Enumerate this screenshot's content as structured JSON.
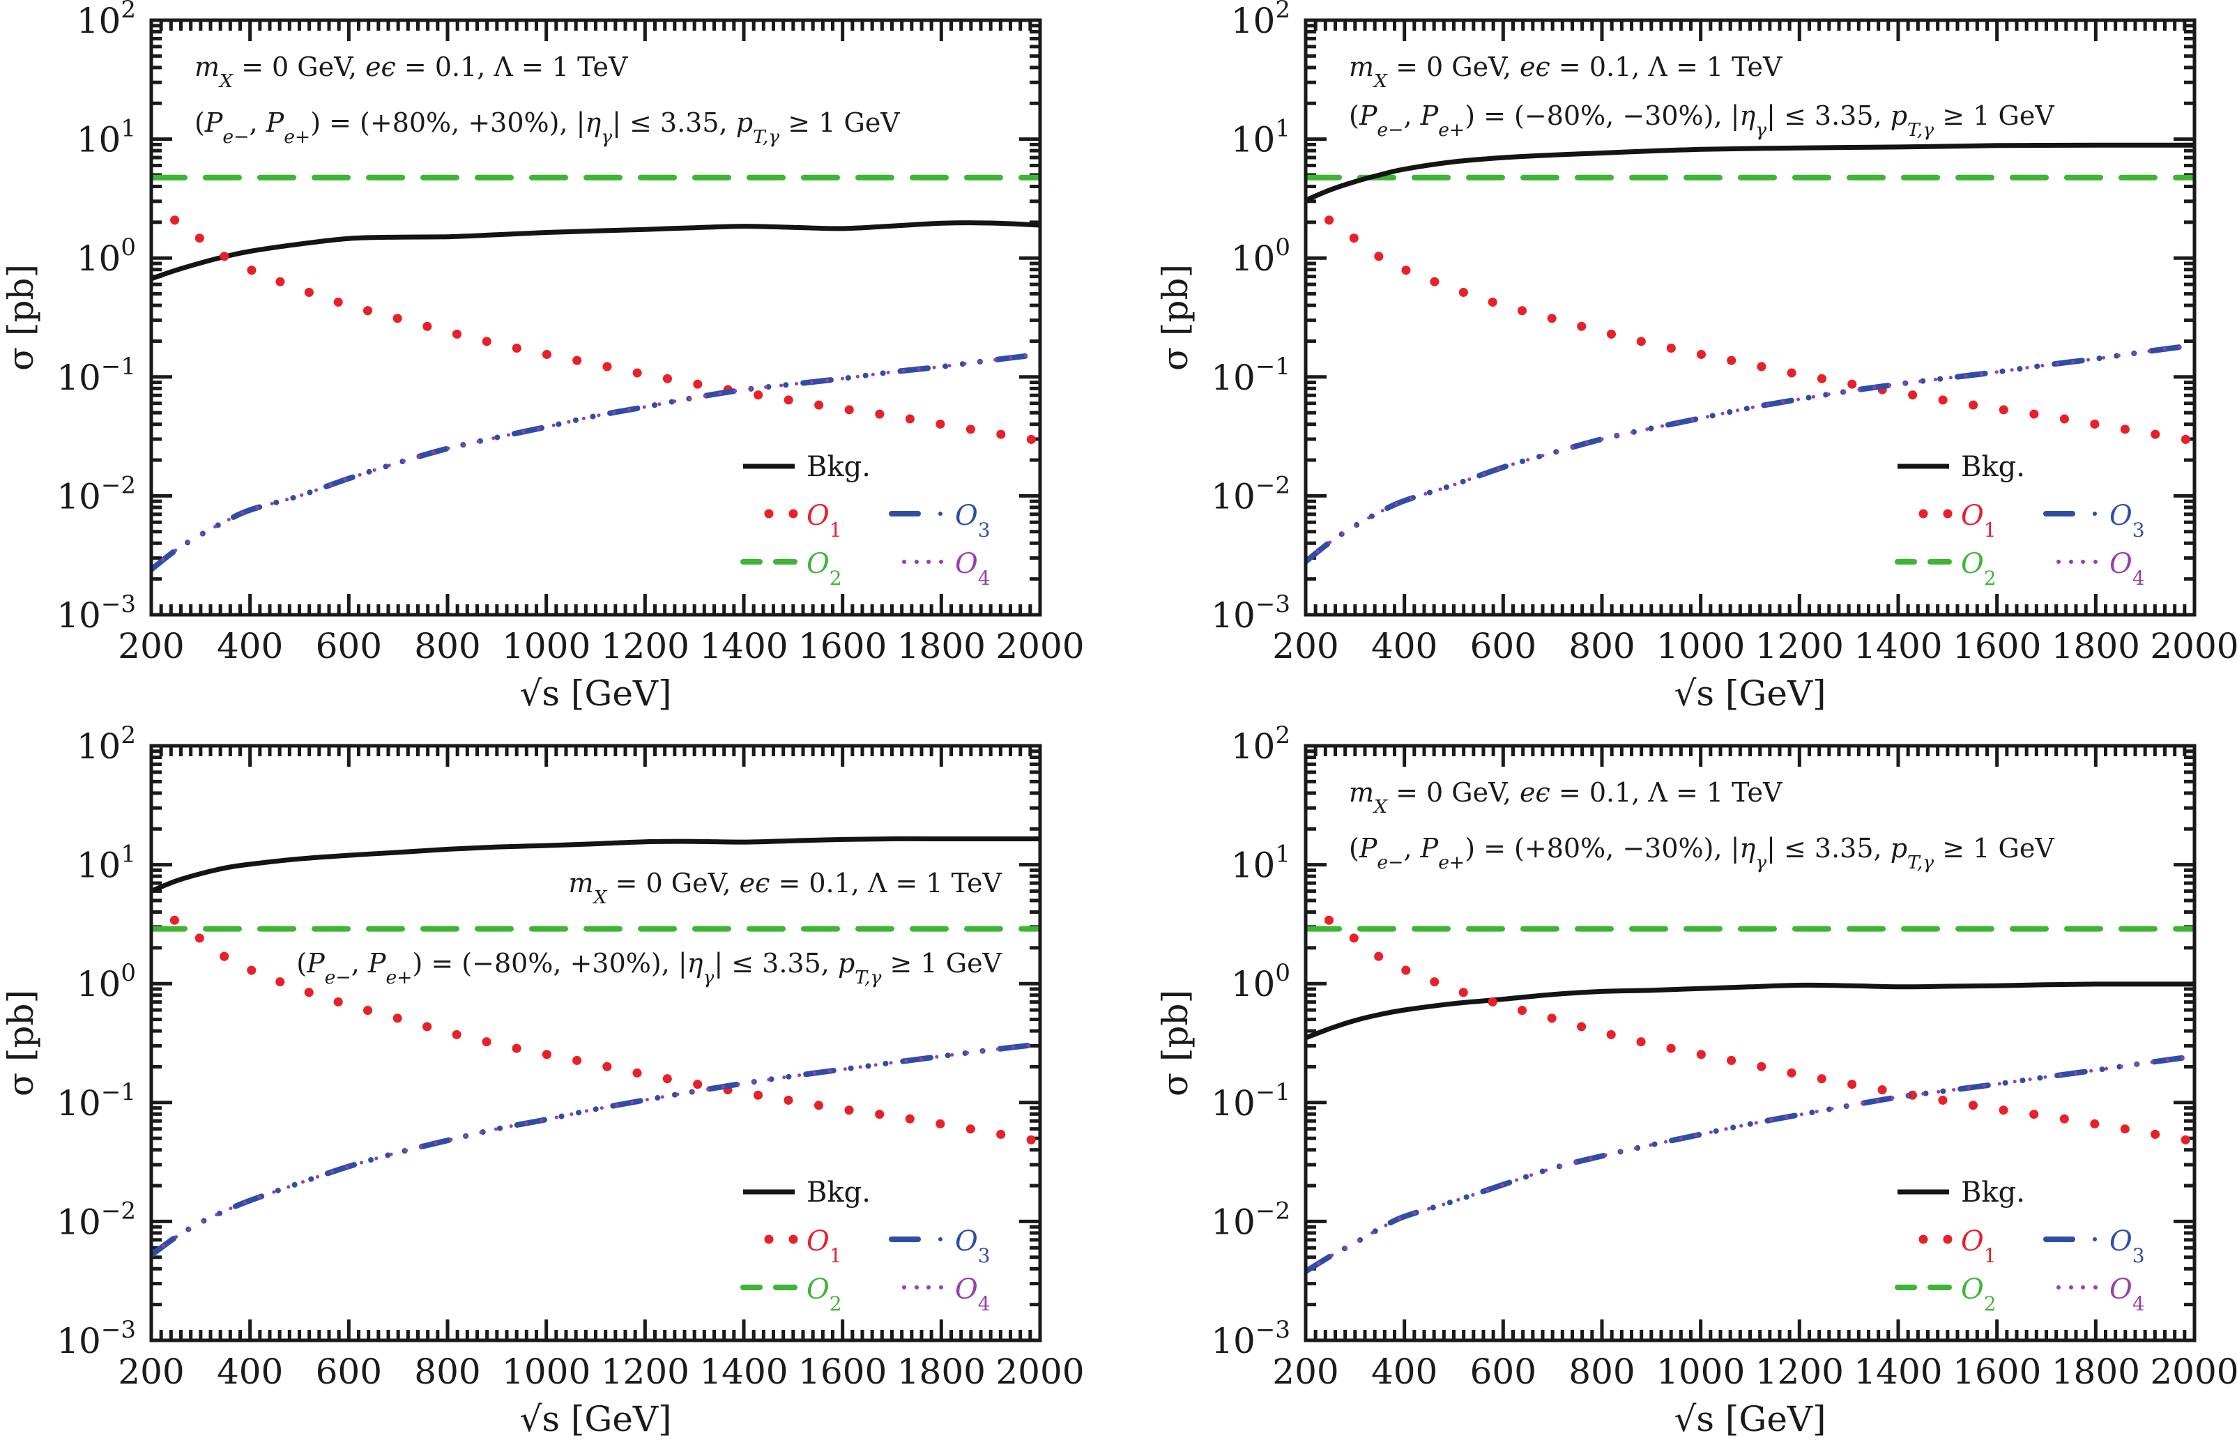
{
  "figure": {
    "description": "Four-panel cross-section plot vs center-of-mass energy for different beam polarizations",
    "panel_order": [
      "top-left",
      "top-right",
      "bottom-left",
      "bottom-right"
    ]
  },
  "colors": {
    "bkg": "#141414",
    "o1": "#e8202a",
    "o2": "#3db535",
    "o3": "#2e4ea6",
    "o4": "#9a3db0",
    "axis": "#1a1a1a"
  },
  "chart_data": [
    {
      "type": "line",
      "position": "top-left",
      "title": "",
      "xlabel": "√s [GeV]",
      "ylabel": "σ [pb]",
      "xlim": [
        200,
        2000
      ],
      "ylim": [
        0.001,
        100
      ],
      "yscale": "log",
      "grid": false,
      "xticks": [
        200,
        400,
        600,
        800,
        1000,
        1200,
        1400,
        1600,
        1800,
        2000
      ],
      "xtick_labels": [
        "200",
        "400",
        "600",
        "800",
        "1000",
        "1200",
        "1400",
        "1600",
        "1800",
        "2000"
      ],
      "yticks": [
        {
          "base": "10",
          "exp": "2"
        },
        {
          "base": "10",
          "exp": "1"
        },
        {
          "base": "10",
          "exp": "0"
        },
        {
          "base": "10",
          "exp": "−1"
        },
        {
          "base": "10",
          "exp": "−2"
        },
        {
          "base": "10",
          "exp": "−3"
        }
      ],
      "annotations": {
        "align": "left",
        "line1": "mX = 0 GeV, eϵ = 0.1, Λ = 1 TeV",
        "line2": "(Pe−, Pe+) = (+80%, +30%),  |ηγ| ≤ 3.35,  pT,γ ≥ 1 GeV"
      },
      "legend": {
        "placement": "lower-right",
        "entries": [
          "Bkg.",
          "O1",
          "O3",
          "O2",
          "O4"
        ]
      },
      "x": [
        200,
        250,
        300,
        350,
        400,
        500,
        600,
        700,
        800,
        900,
        1000,
        1100,
        1200,
        1300,
        1400,
        1500,
        1600,
        1700,
        1800,
        1900,
        2000
      ],
      "series": [
        {
          "name": "Bkg.",
          "key": "bkg",
          "style": "solid",
          "values": [
            0.67,
            0.79,
            0.91,
            1.03,
            1.14,
            1.31,
            1.46,
            1.5,
            1.51,
            1.57,
            1.64,
            1.69,
            1.74,
            1.8,
            1.85,
            1.81,
            1.77,
            1.86,
            1.96,
            1.97,
            1.89
          ]
        },
        {
          "name": "O1",
          "key": "o1",
          "style": "dotted",
          "values": [
            2.8,
            2.05,
            1.45,
            1.02,
            0.8,
            0.55,
            0.4,
            0.31,
            0.24,
            0.19,
            0.155,
            0.128,
            0.105,
            0.088,
            0.074,
            0.063,
            0.054,
            0.047,
            0.04,
            0.034,
            0.029
          ]
        },
        {
          "name": "O2",
          "key": "o2",
          "style": "dashed",
          "values": [
            4.75,
            4.75,
            4.75,
            4.75,
            4.75,
            4.75,
            4.75,
            4.75,
            4.75,
            4.75,
            4.75,
            4.75,
            4.75,
            4.75,
            4.75,
            4.75,
            4.75,
            4.75,
            4.75,
            4.75,
            4.75
          ]
        },
        {
          "name": "O3",
          "key": "o3",
          "style": "dashdot",
          "values": [
            0.0024,
            0.0035,
            0.0047,
            0.0061,
            0.0076,
            0.01,
            0.014,
            0.019,
            0.025,
            0.031,
            0.038,
            0.047,
            0.056,
            0.067,
            0.078,
            0.087,
            0.097,
            0.11,
            0.122,
            0.138,
            0.155
          ]
        },
        {
          "name": "O4",
          "key": "o4",
          "style": "densedot",
          "values": [
            0.0024,
            0.0035,
            0.0047,
            0.0061,
            0.0076,
            0.01,
            0.014,
            0.019,
            0.025,
            0.031,
            0.038,
            0.047,
            0.056,
            0.067,
            0.078,
            0.087,
            0.097,
            0.11,
            0.122,
            0.138,
            0.155
          ]
        }
      ]
    },
    {
      "type": "line",
      "position": "top-right",
      "title": "",
      "xlabel": "√s [GeV]",
      "ylabel": "σ [pb]",
      "xlim": [
        200,
        2000
      ],
      "ylim": [
        0.001,
        100
      ],
      "yscale": "log",
      "grid": false,
      "xticks": [
        200,
        400,
        600,
        800,
        1000,
        1200,
        1400,
        1600,
        1800,
        2000
      ],
      "xtick_labels": [
        "200",
        "400",
        "600",
        "800",
        "1000",
        "1200",
        "1400",
        "1600",
        "1800",
        "2000"
      ],
      "yticks": [
        {
          "base": "10",
          "exp": "2"
        },
        {
          "base": "10",
          "exp": "1"
        },
        {
          "base": "10",
          "exp": "0"
        },
        {
          "base": "10",
          "exp": "−1"
        },
        {
          "base": "10",
          "exp": "−2"
        },
        {
          "base": "10",
          "exp": "−3"
        }
      ],
      "annotations": {
        "align": "left",
        "line1": "mX = 0 GeV, eϵ = 0.1, Λ = 1 TeV",
        "line2": "(Pe−, Pe+) = (−80%, −30%),  |ηγ| ≤ 3.35,  pT,γ ≥ 1 GeV"
      },
      "legend": {
        "placement": "lower-right",
        "entries": [
          "Bkg.",
          "O1",
          "O3",
          "O2",
          "O4"
        ]
      },
      "x": [
        200,
        250,
        300,
        350,
        400,
        500,
        600,
        700,
        800,
        900,
        1000,
        1100,
        1200,
        1300,
        1400,
        1500,
        1600,
        1700,
        1800,
        1900,
        2000
      ],
      "series": [
        {
          "name": "Bkg.",
          "key": "bkg",
          "style": "solid",
          "values": [
            3.06,
            3.75,
            4.39,
            5.0,
            5.59,
            6.45,
            6.99,
            7.35,
            7.64,
            7.95,
            8.2,
            8.33,
            8.44,
            8.52,
            8.59,
            8.7,
            8.83,
            8.87,
            8.9,
            8.9,
            8.9
          ]
        },
        {
          "name": "O1",
          "key": "o1",
          "style": "dotted",
          "values": [
            2.8,
            2.05,
            1.45,
            1.02,
            0.8,
            0.55,
            0.4,
            0.31,
            0.24,
            0.19,
            0.155,
            0.128,
            0.105,
            0.088,
            0.074,
            0.063,
            0.054,
            0.047,
            0.04,
            0.034,
            0.029
          ]
        },
        {
          "name": "O2",
          "key": "o2",
          "style": "dashed",
          "values": [
            4.75,
            4.75,
            4.75,
            4.75,
            4.75,
            4.75,
            4.75,
            4.75,
            4.75,
            4.75,
            4.75,
            4.75,
            4.75,
            4.75,
            4.75,
            4.75,
            4.75,
            4.75,
            4.75,
            4.75,
            4.75
          ]
        },
        {
          "name": "O3",
          "key": "o3",
          "style": "dashdot",
          "values": [
            0.0028,
            0.0041,
            0.0056,
            0.0073,
            0.0091,
            0.0124,
            0.0174,
            0.023,
            0.03,
            0.037,
            0.045,
            0.055,
            0.065,
            0.076,
            0.087,
            0.098,
            0.11,
            0.126,
            0.142,
            0.163,
            0.185
          ]
        },
        {
          "name": "O4",
          "key": "o4",
          "style": "densedot",
          "values": [
            0.0028,
            0.0041,
            0.0056,
            0.0073,
            0.0091,
            0.0124,
            0.0174,
            0.023,
            0.03,
            0.037,
            0.045,
            0.055,
            0.065,
            0.076,
            0.087,
            0.098,
            0.11,
            0.126,
            0.142,
            0.163,
            0.185
          ]
        }
      ]
    },
    {
      "type": "line",
      "position": "bottom-left",
      "title": "",
      "xlabel": "√s [GeV]",
      "ylabel": "σ [pb]",
      "xlim": [
        200,
        2000
      ],
      "ylim": [
        0.001,
        100
      ],
      "yscale": "log",
      "grid": false,
      "xticks": [
        200,
        400,
        600,
        800,
        1000,
        1200,
        1400,
        1600,
        1800,
        2000
      ],
      "xtick_labels": [
        "200",
        "400",
        "600",
        "800",
        "1000",
        "1200",
        "1400",
        "1600",
        "1800",
        "2000"
      ],
      "yticks": [
        {
          "base": "10",
          "exp": "2"
        },
        {
          "base": "10",
          "exp": "1"
        },
        {
          "base": "10",
          "exp": "0"
        },
        {
          "base": "10",
          "exp": "−1"
        },
        {
          "base": "10",
          "exp": "−2"
        },
        {
          "base": "10",
          "exp": "−3"
        }
      ],
      "annotations": {
        "align": "right",
        "line1": "mX = 0 GeV, eϵ = 0.1, Λ = 1 TeV",
        "line2": "(Pe−, Pe+) = (−80%, +30%),  |ηγ| ≤ 3.35,  pT,γ ≥ 1 GeV"
      },
      "legend": {
        "placement": "lower-right",
        "entries": [
          "Bkg.",
          "O1",
          "O3",
          "O2",
          "O4"
        ]
      },
      "x": [
        200,
        250,
        300,
        350,
        400,
        500,
        600,
        700,
        800,
        900,
        1000,
        1100,
        1200,
        1300,
        1400,
        1500,
        1600,
        1700,
        1800,
        1900,
        2000
      ],
      "series": [
        {
          "name": "Bkg.",
          "key": "bkg",
          "style": "solid",
          "values": [
            6.0,
            7.3,
            8.4,
            9.4,
            10.1,
            11.2,
            12.0,
            12.7,
            13.5,
            14.1,
            14.5,
            15.0,
            15.6,
            15.7,
            15.5,
            15.9,
            16.3,
            16.5,
            16.5,
            16.5,
            16.5
          ]
        },
        {
          "name": "O1",
          "key": "o1",
          "style": "dotted",
          "values": [
            4.6,
            3.35,
            2.38,
            1.67,
            1.31,
            0.9,
            0.66,
            0.51,
            0.39,
            0.31,
            0.254,
            0.21,
            0.172,
            0.144,
            0.121,
            0.103,
            0.088,
            0.077,
            0.066,
            0.056,
            0.047
          ]
        },
        {
          "name": "O2",
          "key": "o2",
          "style": "dashed",
          "values": [
            2.89,
            2.89,
            2.89,
            2.89,
            2.89,
            2.89,
            2.89,
            2.89,
            2.89,
            2.89,
            2.89,
            2.89,
            2.89,
            2.89,
            2.89,
            2.89,
            2.89,
            2.89,
            2.89,
            2.89,
            2.89
          ]
        },
        {
          "name": "O3",
          "key": "o3",
          "style": "dashdot",
          "values": [
            0.0052,
            0.0074,
            0.0098,
            0.0123,
            0.015,
            0.021,
            0.029,
            0.038,
            0.048,
            0.06,
            0.072,
            0.088,
            0.105,
            0.124,
            0.145,
            0.167,
            0.19,
            0.216,
            0.245,
            0.277,
            0.31
          ]
        },
        {
          "name": "O4",
          "key": "o4",
          "style": "densedot",
          "values": [
            0.0052,
            0.0074,
            0.0098,
            0.0123,
            0.015,
            0.021,
            0.029,
            0.038,
            0.048,
            0.06,
            0.072,
            0.088,
            0.105,
            0.124,
            0.145,
            0.167,
            0.19,
            0.216,
            0.245,
            0.277,
            0.31
          ]
        }
      ]
    },
    {
      "type": "line",
      "position": "bottom-right",
      "title": "",
      "xlabel": "√s [GeV]",
      "ylabel": "σ [pb]",
      "xlim": [
        200,
        2000
      ],
      "ylim": [
        0.001,
        100
      ],
      "yscale": "log",
      "grid": false,
      "xticks": [
        200,
        400,
        600,
        800,
        1000,
        1200,
        1400,
        1600,
        1800,
        2000
      ],
      "xtick_labels": [
        "200",
        "400",
        "600",
        "800",
        "1000",
        "1200",
        "1400",
        "1600",
        "1800",
        "2000"
      ],
      "yticks": [
        {
          "base": "10",
          "exp": "2"
        },
        {
          "base": "10",
          "exp": "1"
        },
        {
          "base": "10",
          "exp": "0"
        },
        {
          "base": "10",
          "exp": "−1"
        },
        {
          "base": "10",
          "exp": "−2"
        },
        {
          "base": "10",
          "exp": "−3"
        }
      ],
      "annotations": {
        "align": "left",
        "line1": "mX = 0 GeV, eϵ = 0.1, Λ = 1 TeV",
        "line2": "(Pe−, Pe+) = (+80%, −30%),  |ηγ| ≤ 3.35,  pT,γ ≥ 1 GeV"
      },
      "legend": {
        "placement": "lower-right",
        "entries": [
          "Bkg.",
          "O1",
          "O3",
          "O2",
          "O4"
        ]
      },
      "x": [
        200,
        250,
        300,
        350,
        400,
        500,
        600,
        700,
        800,
        900,
        1000,
        1100,
        1200,
        1300,
        1400,
        1500,
        1600,
        1700,
        1800,
        1900,
        2000
      ],
      "series": [
        {
          "name": "Bkg.",
          "key": "bkg",
          "style": "solid",
          "values": [
            0.35,
            0.42,
            0.49,
            0.55,
            0.6,
            0.68,
            0.74,
            0.81,
            0.86,
            0.88,
            0.91,
            0.94,
            0.97,
            0.96,
            0.94,
            0.95,
            0.96,
            0.98,
            0.99,
            0.99,
            0.99
          ]
        },
        {
          "name": "O1",
          "key": "o1",
          "style": "dotted",
          "values": [
            4.6,
            3.35,
            2.38,
            1.67,
            1.31,
            0.9,
            0.66,
            0.51,
            0.39,
            0.31,
            0.254,
            0.21,
            0.172,
            0.144,
            0.121,
            0.103,
            0.088,
            0.077,
            0.066,
            0.056,
            0.047
          ]
        },
        {
          "name": "O2",
          "key": "o2",
          "style": "dashed",
          "values": [
            2.89,
            2.89,
            2.89,
            2.89,
            2.89,
            2.89,
            2.89,
            2.89,
            2.89,
            2.89,
            2.89,
            2.89,
            2.89,
            2.89,
            2.89,
            2.89,
            2.89,
            2.89,
            2.89,
            2.89,
            2.89
          ]
        },
        {
          "name": "O3",
          "key": "o3",
          "style": "dashdot",
          "values": [
            0.0038,
            0.0051,
            0.0066,
            0.0087,
            0.011,
            0.0148,
            0.0204,
            0.028,
            0.0355,
            0.044,
            0.054,
            0.066,
            0.079,
            0.094,
            0.111,
            0.126,
            0.143,
            0.164,
            0.187,
            0.215,
            0.245
          ]
        },
        {
          "name": "O4",
          "key": "o4",
          "style": "densedot",
          "values": [
            0.0038,
            0.0051,
            0.0066,
            0.0087,
            0.011,
            0.0148,
            0.0204,
            0.028,
            0.0355,
            0.044,
            0.054,
            0.066,
            0.079,
            0.094,
            0.111,
            0.126,
            0.143,
            0.164,
            0.187,
            0.215,
            0.245
          ]
        }
      ]
    }
  ]
}
